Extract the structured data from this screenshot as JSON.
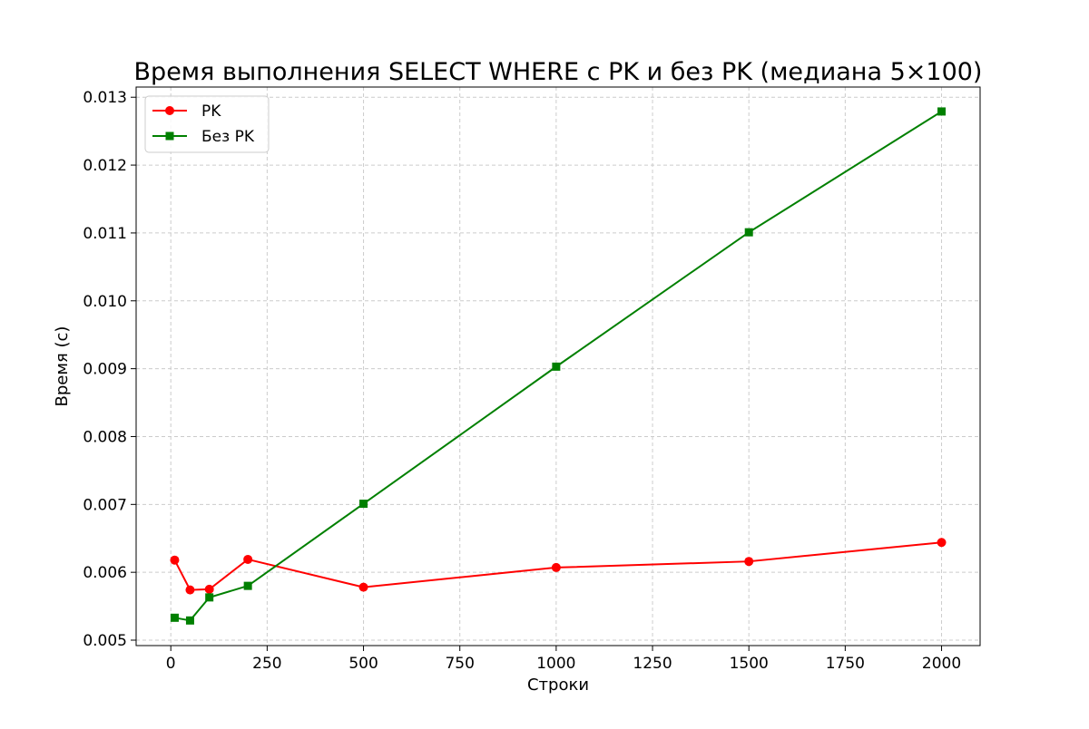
{
  "chart_data": {
    "type": "line",
    "title": "Время выполнения SELECT WHERE с PK и без PK (медиана 5×100)",
    "xlabel": "Строки",
    "ylabel": "Время (с)",
    "xlim": [
      -90,
      2100
    ],
    "ylim": [
      0.00492,
      0.01315
    ],
    "xticks": [
      0,
      250,
      500,
      750,
      1000,
      1250,
      1500,
      1750,
      2000
    ],
    "xtick_labels": [
      "0",
      "250",
      "500",
      "750",
      "1000",
      "1250",
      "1500",
      "1750",
      "2000"
    ],
    "yticks": [
      0.005,
      0.006,
      0.007,
      0.008,
      0.009,
      0.01,
      0.011,
      0.012,
      0.013
    ],
    "ytick_labels": [
      "0.005",
      "0.006",
      "0.007",
      "0.008",
      "0.009",
      "0.010",
      "0.011",
      "0.012",
      "0.013"
    ],
    "grid": true,
    "legend_position": "top-left",
    "x": [
      10,
      50,
      100,
      200,
      500,
      1000,
      1500,
      2000
    ],
    "series": [
      {
        "name": "PK",
        "color": "#ff0000",
        "marker": "circle",
        "values": [
          0.00618,
          0.00574,
          0.00575,
          0.00619,
          0.00578,
          0.00607,
          0.00616,
          0.00644
        ]
      },
      {
        "name": "Без PK",
        "color": "#008000",
        "marker": "square",
        "values": [
          0.00533,
          0.00529,
          0.00563,
          0.0058,
          0.00701,
          0.00903,
          0.01101,
          0.01279
        ]
      }
    ]
  }
}
